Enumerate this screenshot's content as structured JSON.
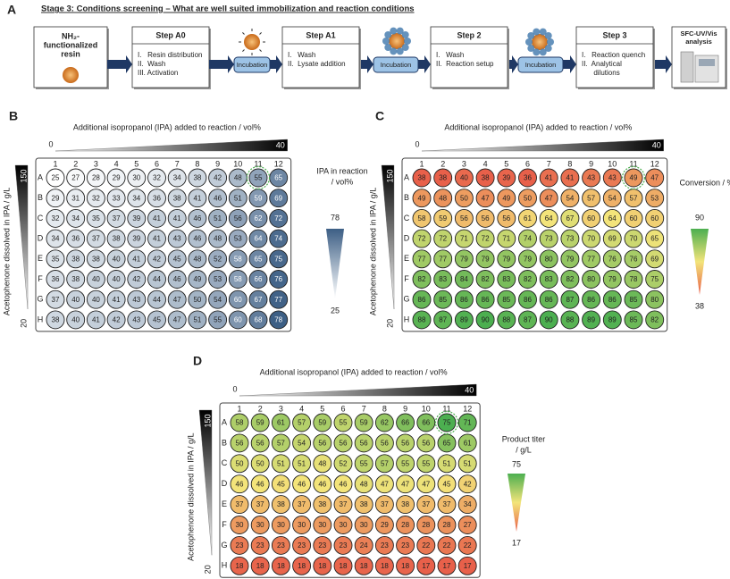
{
  "panel_a": {
    "label": "A",
    "title": "Stage 3: Conditions screening – What are well suited immobilization and reaction conditions",
    "start": [
      "NH₂-",
      "functionalized",
      "resin"
    ],
    "steps": [
      {
        "title": "Step A0",
        "items": [
          "I.   Resin distribution",
          "II.  Wash",
          "III. Activation"
        ]
      },
      {
        "title": "Step A1",
        "items": [
          "I.   Wash",
          "II.  Lysate addition"
        ]
      },
      {
        "title": "Step 2",
        "items": [
          "I.   Wash",
          "II.  Reaction setup"
        ]
      },
      {
        "title": "Step 3",
        "items": [
          "I.   Reaction quench",
          "II.  Analytical",
          "      dilutions"
        ]
      }
    ],
    "incubations": [
      "Incubation",
      "Incubation",
      "Incubation"
    ],
    "analysis": [
      "SFC-UV/Vis",
      "analysis"
    ]
  },
  "plates": [
    {
      "label": "B",
      "x_title": "Additional isopropanol (IPA) added to reaction / vol%",
      "x_min": 0,
      "x_max": 40,
      "y_title": "Acetophenone dissolved in IPA / g/L",
      "y_max": 150,
      "y_min": 20,
      "columns": [
        1,
        2,
        3,
        4,
        5,
        6,
        7,
        8,
        9,
        10,
        11,
        12
      ],
      "rows": [
        "A",
        "B",
        "C",
        "D",
        "E",
        "F",
        "G",
        "H"
      ],
      "values": [
        [
          25,
          27,
          28,
          29,
          30,
          32,
          34,
          38,
          42,
          48,
          55,
          65
        ],
        [
          29,
          31,
          32,
          33,
          34,
          36,
          38,
          41,
          46,
          51,
          59,
          69
        ],
        [
          32,
          34,
          35,
          37,
          39,
          41,
          41,
          46,
          51,
          56,
          62,
          72
        ],
        [
          34,
          36,
          37,
          38,
          39,
          41,
          43,
          46,
          48,
          53,
          64,
          74
        ],
        [
          35,
          38,
          38,
          40,
          41,
          42,
          45,
          48,
          52,
          58,
          65,
          75
        ],
        [
          36,
          38,
          40,
          40,
          42,
          44,
          46,
          49,
          53,
          58,
          66,
          76
        ],
        [
          37,
          40,
          40,
          41,
          43,
          44,
          47,
          50,
          54,
          60,
          67,
          77
        ],
        [
          38,
          40,
          41,
          42,
          43,
          45,
          47,
          51,
          55,
          60,
          68,
          78
        ]
      ],
      "scale": {
        "title": [
          "IPA in reaction",
          "/ vol%"
        ],
        "max": 78,
        "min": 25,
        "colors": [
          "#ffffff",
          "#3d5f85"
        ]
      }
    },
    {
      "label": "C",
      "x_title": "Additional isopropanol (IPA) added to reaction / vol%",
      "x_min": 0,
      "x_max": 40,
      "y_title": "Acetophenone dissolved in IPA / g/L",
      "y_max": 150,
      "y_min": 20,
      "columns": [
        1,
        2,
        3,
        4,
        5,
        6,
        7,
        8,
        9,
        10,
        11,
        12
      ],
      "rows": [
        "A",
        "B",
        "C",
        "D",
        "E",
        "F",
        "G",
        "H"
      ],
      "values": [
        [
          38,
          38,
          40,
          38,
          39,
          36,
          41,
          41,
          43,
          43,
          49,
          47
        ],
        [
          49,
          48,
          50,
          47,
          49,
          50,
          47,
          54,
          57,
          54,
          57,
          53
        ],
        [
          58,
          59,
          56,
          56,
          56,
          61,
          64,
          67,
          60,
          64,
          60,
          60
        ],
        [
          72,
          72,
          71,
          72,
          71,
          74,
          73,
          73,
          70,
          69,
          70,
          65
        ],
        [
          77,
          77,
          79,
          79,
          79,
          79,
          80,
          79,
          77,
          76,
          76,
          69
        ],
        [
          82,
          83,
          84,
          82,
          83,
          82,
          83,
          82,
          80,
          79,
          78,
          75
        ],
        [
          86,
          85,
          86,
          86,
          85,
          86,
          86,
          87,
          86,
          86,
          85,
          80
        ],
        [
          88,
          87,
          89,
          90,
          88,
          87,
          90,
          88,
          89,
          89,
          85,
          82
        ]
      ],
      "scale": {
        "title": [
          "Conversion / %"
        ],
        "max": 90,
        "min": 38,
        "colors": [
          "#e8604a",
          "#f3e47a",
          "#4caf50"
        ]
      }
    },
    {
      "label": "D",
      "x_title": "Additional isopropanol (IPA) added to reaction / vol%",
      "x_min": 0,
      "x_max": 40,
      "y_title": "Acetophenone dissolved in IPA / g/L",
      "y_max": 150,
      "y_min": 20,
      "columns": [
        1,
        2,
        3,
        4,
        5,
        6,
        7,
        8,
        9,
        10,
        11,
        12
      ],
      "rows": [
        "A",
        "B",
        "C",
        "D",
        "E",
        "F",
        "G",
        "H"
      ],
      "values": [
        [
          58,
          59,
          61,
          57,
          59,
          55,
          59,
          62,
          66,
          66,
          75,
          71
        ],
        [
          56,
          56,
          57,
          54,
          56,
          56,
          56,
          56,
          56,
          56,
          65,
          61
        ],
        [
          50,
          50,
          51,
          51,
          48,
          52,
          55,
          57,
          55,
          55,
          51,
          51
        ],
        [
          46,
          46,
          45,
          46,
          46,
          46,
          48,
          47,
          47,
          47,
          45,
          42
        ],
        [
          37,
          37,
          38,
          37,
          38,
          37,
          38,
          37,
          38,
          37,
          37,
          34
        ],
        [
          30,
          30,
          30,
          30,
          30,
          30,
          30,
          29,
          28,
          28,
          28,
          27
        ],
        [
          23,
          23,
          23,
          23,
          23,
          23,
          24,
          23,
          23,
          22,
          22,
          22
        ],
        [
          18,
          18,
          18,
          18,
          18,
          18,
          18,
          18,
          18,
          17,
          17,
          17
        ]
      ],
      "scale": {
        "title": [
          "Product titer",
          "/ g/L"
        ],
        "max": 75,
        "min": 17,
        "colors": [
          "#e8604a",
          "#f3e47a",
          "#4caf50"
        ]
      }
    }
  ]
}
